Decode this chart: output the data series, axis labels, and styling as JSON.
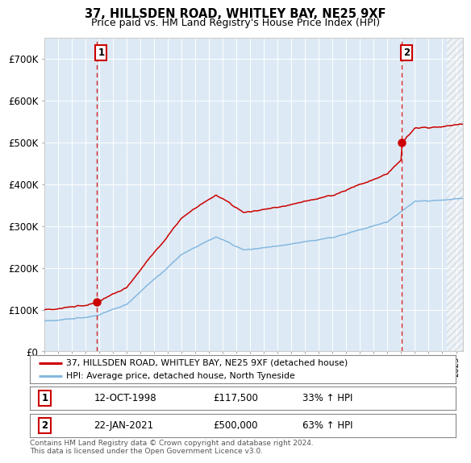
{
  "title": "37, HILLSDEN ROAD, WHITLEY BAY, NE25 9XF",
  "subtitle": "Price paid vs. HM Land Registry's House Price Index (HPI)",
  "title_fontsize": 10.5,
  "subtitle_fontsize": 9,
  "bg_color": "#ddeaf5",
  "fig_bg_color": "#ffffff",
  "hpi_color": "#85b8e0",
  "price_color": "#cc0000",
  "ylim": [
    0,
    750000
  ],
  "yticks": [
    0,
    100000,
    200000,
    300000,
    400000,
    500000,
    600000,
    700000
  ],
  "ytick_labels": [
    "£0",
    "£100K",
    "£200K",
    "£300K",
    "£400K",
    "£500K",
    "£600K",
    "£700K"
  ],
  "sale1_date_num": 1998.79,
  "sale1_price": 117500,
  "sale2_date_num": 2021.06,
  "sale2_price": 500000,
  "legend_line1": "37, HILLSDEN ROAD, WHITLEY BAY, NE25 9XF (detached house)",
  "legend_line2": "HPI: Average price, detached house, North Tyneside",
  "table_row1": [
    "1",
    "12-OCT-1998",
    "£117,500",
    "33% ↑ HPI"
  ],
  "table_row2": [
    "2",
    "22-JAN-2021",
    "£500,000",
    "63% ↑ HPI"
  ],
  "footer": "Contains HM Land Registry data © Crown copyright and database right 2024.\nThis data is licensed under the Open Government Licence v3.0.",
  "xstart": 1995.0,
  "xend": 2025.5
}
